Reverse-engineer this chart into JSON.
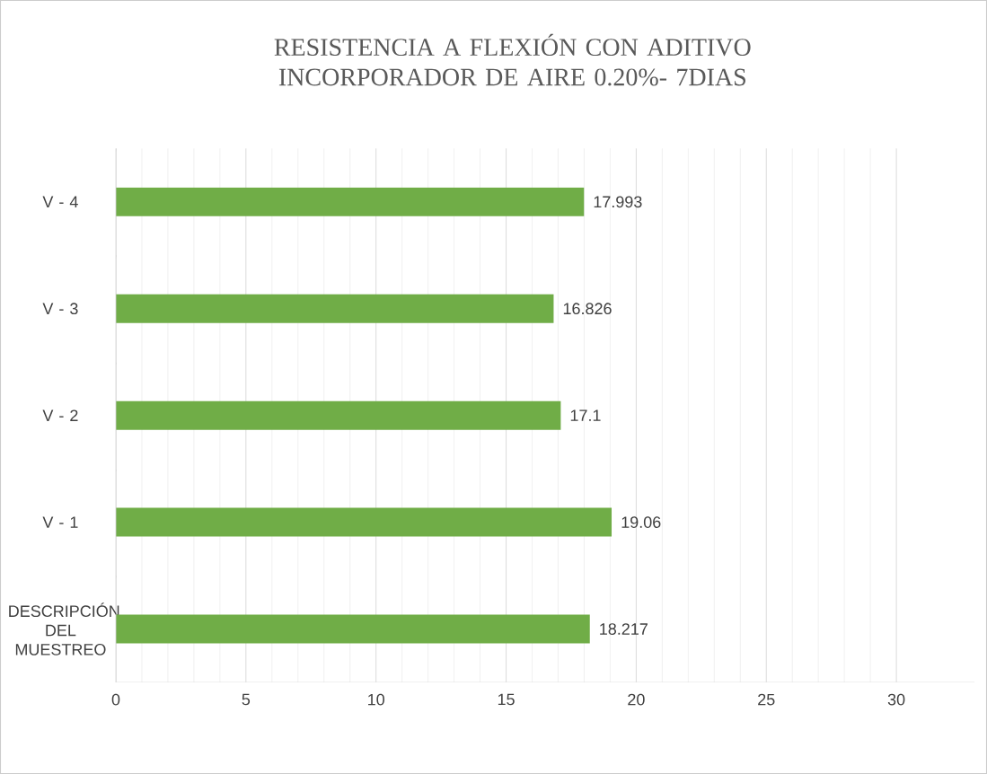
{
  "chart_data": {
    "type": "bar",
    "orientation": "horizontal",
    "title": "RESISTENCIA A FLEXIÓN  CON ADITIVO INCORPORADOR DE AIRE 0.20%- 7DIAS",
    "categories": [
      "V - 4",
      "V - 3",
      "V - 2",
      "V - 1",
      "DESCRIPCIÓN DEL MUESTREO"
    ],
    "values": [
      17.993,
      16.826,
      17.1,
      19.06,
      18.217
    ],
    "color": "#70ad47",
    "xlim": [
      0,
      33
    ],
    "xticks": [
      0,
      5,
      10,
      15,
      20,
      25,
      30
    ],
    "grid": "x",
    "data_labels": true
  }
}
